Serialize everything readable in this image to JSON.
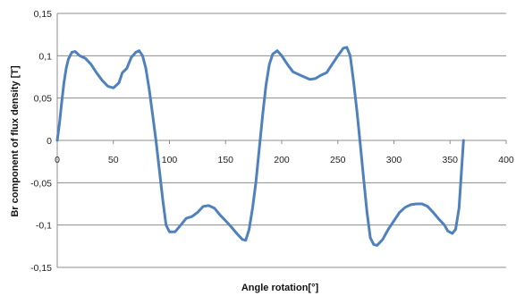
{
  "chart_data": {
    "type": "line",
    "title": "",
    "xlabel": "Angle rotation[°]",
    "ylabel": "Br component of flux density  [T]",
    "xlim": [
      0,
      400
    ],
    "ylim": [
      -0.15,
      0.15
    ],
    "x_ticks": [
      0,
      50,
      100,
      150,
      200,
      250,
      300,
      350,
      400
    ],
    "x_tick_labels": [
      "0",
      "50",
      "100",
      "150",
      "200",
      "250",
      "300",
      "350",
      "400"
    ],
    "y_ticks": [
      0.15,
      0.1,
      0.05,
      0,
      -0.05,
      -0.1,
      -0.15
    ],
    "y_tick_labels": [
      "0,15",
      "0,1",
      "0,05",
      "0",
      "-0,05",
      "-0,1",
      "-0,15"
    ],
    "grid": "horizontal",
    "legend": "none",
    "colors": {
      "series": "#4f81bd",
      "grid": "#8c8c8c"
    },
    "series": [
      {
        "values": [
          [
            0,
            0
          ],
          [
            2,
            0.02
          ],
          [
            4,
            0.045
          ],
          [
            6,
            0.068
          ],
          [
            8,
            0.085
          ],
          [
            10,
            0.096
          ],
          [
            13,
            0.104
          ],
          [
            16,
            0.105
          ],
          [
            20,
            0.1
          ],
          [
            25,
            0.097
          ],
          [
            30,
            0.09
          ],
          [
            35,
            0.08
          ],
          [
            40,
            0.071
          ],
          [
            45,
            0.064
          ],
          [
            50,
            0.062
          ],
          [
            55,
            0.068
          ],
          [
            58,
            0.08
          ],
          [
            62,
            0.085
          ],
          [
            66,
            0.098
          ],
          [
            70,
            0.104
          ],
          [
            73,
            0.106
          ],
          [
            76,
            0.1
          ],
          [
            79,
            0.085
          ],
          [
            82,
            0.06
          ],
          [
            85,
            0.03
          ],
          [
            88,
            0.0
          ],
          [
            91,
            -0.035
          ],
          [
            94,
            -0.07
          ],
          [
            97,
            -0.1
          ],
          [
            100,
            -0.108
          ],
          [
            105,
            -0.108
          ],
          [
            110,
            -0.1
          ],
          [
            115,
            -0.092
          ],
          [
            120,
            -0.09
          ],
          [
            125,
            -0.085
          ],
          [
            130,
            -0.078
          ],
          [
            135,
            -0.077
          ],
          [
            140,
            -0.08
          ],
          [
            145,
            -0.088
          ],
          [
            150,
            -0.095
          ],
          [
            155,
            -0.102
          ],
          [
            160,
            -0.11
          ],
          [
            165,
            -0.117
          ],
          [
            168,
            -0.118
          ],
          [
            171,
            -0.105
          ],
          [
            174,
            -0.08
          ],
          [
            177,
            -0.05
          ],
          [
            180,
            -0.01
          ],
          [
            183,
            0.03
          ],
          [
            186,
            0.065
          ],
          [
            189,
            0.09
          ],
          [
            192,
            0.102
          ],
          [
            196,
            0.106
          ],
          [
            200,
            0.1
          ],
          [
            205,
            0.09
          ],
          [
            210,
            0.081
          ],
          [
            215,
            0.078
          ],
          [
            220,
            0.075
          ],
          [
            225,
            0.072
          ],
          [
            230,
            0.073
          ],
          [
            235,
            0.077
          ],
          [
            240,
            0.08
          ],
          [
            245,
            0.09
          ],
          [
            250,
            0.1
          ],
          [
            255,
            0.109
          ],
          [
            258,
            0.11
          ],
          [
            261,
            0.1
          ],
          [
            264,
            0.07
          ],
          [
            267,
            0.035
          ],
          [
            270,
            -0.005
          ],
          [
            273,
            -0.045
          ],
          [
            276,
            -0.085
          ],
          [
            279,
            -0.115
          ],
          [
            282,
            -0.123
          ],
          [
            285,
            -0.124
          ],
          [
            290,
            -0.117
          ],
          [
            295,
            -0.105
          ],
          [
            300,
            -0.095
          ],
          [
            305,
            -0.085
          ],
          [
            310,
            -0.079
          ],
          [
            315,
            -0.076
          ],
          [
            320,
            -0.075
          ],
          [
            325,
            -0.075
          ],
          [
            330,
            -0.078
          ],
          [
            335,
            -0.085
          ],
          [
            340,
            -0.093
          ],
          [
            345,
            -0.1
          ],
          [
            348,
            -0.107
          ],
          [
            352,
            -0.11
          ],
          [
            355,
            -0.105
          ],
          [
            358,
            -0.08
          ],
          [
            360,
            -0.04
          ],
          [
            362,
            0
          ]
        ]
      }
    ]
  }
}
